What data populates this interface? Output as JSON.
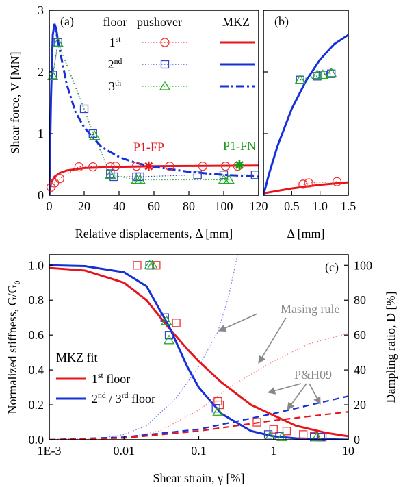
{
  "chart_data": [
    {
      "type": "line",
      "panel": "(a)",
      "y_label": "Shear force, V [MN]",
      "x_label": "Relative displacements, Δ [mm]",
      "xlim": [
        0,
        120
      ],
      "xticks": [
        0,
        20,
        40,
        60,
        80,
        100,
        120
      ],
      "ylim": [
        0,
        3
      ],
      "yticks": [
        0,
        1,
        2,
        3
      ],
      "legend_headers": [
        "floor",
        "pushover",
        "MKZ"
      ],
      "series": [
        {
          "name": [
            {
              "text": "1"
            },
            {
              "sup": "st"
            }
          ],
          "color": "#ee3333",
          "marker": "circle",
          "dash": "dotted",
          "x": [
            1,
            3,
            6,
            17,
            25,
            35,
            38,
            50,
            69,
            88,
            101,
            108
          ],
          "values": [
            0.13,
            0.2,
            0.27,
            0.46,
            0.46,
            0.46,
            0.47,
            0.47,
            0.47,
            0.47,
            0.47,
            0.47
          ]
        },
        {
          "name": [
            {
              "text": "2"
            },
            {
              "sup": "nd"
            }
          ],
          "color": "#3344cc",
          "marker": "square",
          "dash": "dotted",
          "x": [
            2,
            5,
            20,
            25,
            35,
            37,
            50,
            52,
            85,
            100,
            118
          ],
          "values": [
            1.95,
            2.48,
            1.4,
            1.0,
            0.35,
            0.3,
            0.3,
            0.3,
            0.33,
            0.33,
            0.33
          ]
        },
        {
          "name": [
            {
              "text": "3"
            },
            {
              "sup": "th"
            }
          ],
          "color": "#22aa22",
          "marker": "triangle",
          "dash": "dotted",
          "x": [
            2,
            5,
            26,
            35,
            50,
            52,
            100,
            103
          ],
          "values": [
            1.93,
            2.47,
            0.96,
            0.33,
            0.25,
            0.25,
            0.25,
            0.25
          ]
        },
        {
          "color": "#e8141b",
          "dash": "solid",
          "x": [
            0,
            1,
            3,
            6,
            10,
            20,
            40,
            60,
            90,
            120
          ],
          "values": [
            0,
            0.2,
            0.3,
            0.36,
            0.4,
            0.44,
            0.46,
            0.47,
            0.475,
            0.48
          ]
        },
        {
          "color": "#1530d8",
          "dash": "solid",
          "x": [
            0,
            1,
            2,
            3,
            4,
            5
          ],
          "values": [
            0,
            1.6,
            2.6,
            2.78,
            2.7,
            2.5
          ]
        },
        {
          "color": "#1530d8",
          "dash": "dashdot",
          "x": [
            3,
            5,
            10,
            15,
            20,
            30,
            40,
            50,
            60,
            80,
            100,
            120
          ],
          "values": [
            2.78,
            2.5,
            1.8,
            1.35,
            1.1,
            0.78,
            0.62,
            0.52,
            0.46,
            0.38,
            0.33,
            0.3
          ]
        }
      ],
      "points": [
        {
          "label": "P1-FP",
          "x": 57,
          "y": 0.47,
          "color": "#e8141b"
        },
        {
          "label": "P1-FN",
          "x": 109,
          "y": 0.49,
          "color": "#1a9a1a"
        }
      ]
    },
    {
      "type": "line",
      "panel": "(b)",
      "x_label": "Δ [mm]",
      "xlim": [
        0,
        1.5
      ],
      "xticks": [
        0.5,
        {
          "value": 1,
          "label": "1.0"
        },
        1.5
      ],
      "ylim": [
        0,
        3
      ],
      "yticks": [
        0,
        1,
        2,
        3
      ],
      "show_ytick_labels": false,
      "series": [
        {
          "color": "#ee3333",
          "marker": "circle",
          "dash": "dotted",
          "x": [
            0.7,
            0.8,
            1.3
          ],
          "values": [
            0.18,
            0.2,
            0.22
          ]
        },
        {
          "color": "#3344cc",
          "marker": "square",
          "dash": "dotted",
          "x": [
            0.65,
            0.95,
            1.05,
            1.2
          ],
          "values": [
            1.87,
            1.93,
            1.95,
            1.97
          ]
        },
        {
          "color": "#22aa22",
          "marker": "triangle",
          "dash": "dotted",
          "x": [
            0.65,
            0.95,
            1.05,
            1.2
          ],
          "values": [
            1.87,
            1.95,
            1.95,
            1.98
          ]
        },
        {
          "color": "#e8141b",
          "dash": "solid",
          "x": [
            0,
            0.25,
            0.5,
            0.75,
            1,
            1.25,
            1.5
          ],
          "values": [
            0.03,
            0.07,
            0.11,
            0.14,
            0.17,
            0.19,
            0.21
          ]
        },
        {
          "color": "#1530d8",
          "dash": "solid",
          "x": [
            0,
            0.1,
            0.25,
            0.5,
            0.75,
            1,
            1.25,
            1.5
          ],
          "values": [
            0,
            0.35,
            0.8,
            1.4,
            1.85,
            2.2,
            2.45,
            2.6
          ]
        }
      ]
    },
    {
      "type": "line",
      "panel": "(c)",
      "xscale": "log",
      "y_label": [
        {
          "text": "Normalized stiffness, G/G"
        },
        {
          "sub": "0"
        }
      ],
      "y2_label": "Dampling ratio, D [%]",
      "x_label": "Shear strain, γ [%]",
      "xlim": [
        0.001,
        10
      ],
      "xticks": [
        {
          "value": 0.001,
          "label": "1E-3"
        },
        0.01,
        0.1,
        1,
        10
      ],
      "ylim": [
        0,
        1.06
      ],
      "yticks": [
        {
          "value": 0,
          "label": "0.0"
        },
        0.2,
        0.4,
        0.6,
        0.8,
        {
          "value": 1,
          "label": "1.0"
        }
      ],
      "y2lim": [
        0,
        106
      ],
      "y2ticks": [
        0,
        20,
        40,
        60,
        80,
        100
      ],
      "legend_title": "MKZ fit",
      "series": [
        {
          "name": [
            {
              "text": "1"
            },
            {
              "sup": "st"
            },
            {
              "text": " floor"
            }
          ],
          "color": "#e8141b",
          "dash": "solid",
          "x": [
            0.001,
            0.003,
            0.01,
            0.02,
            0.04,
            0.07,
            0.1,
            0.2,
            0.5,
            1,
            2,
            5,
            10
          ],
          "values": [
            0.985,
            0.97,
            0.9,
            0.8,
            0.64,
            0.52,
            0.45,
            0.33,
            0.2,
            0.14,
            0.08,
            0.04,
            0.02
          ]
        },
        {
          "name": [
            {
              "text": "2"
            },
            {
              "sup": "nd"
            },
            {
              "text": " / 3"
            },
            {
              "sup": "rd"
            },
            {
              "text": " floor"
            }
          ],
          "color": "#1530d8",
          "dash": "solid",
          "x": [
            0.001,
            0.003,
            0.01,
            0.02,
            0.04,
            0.07,
            0.1,
            0.2,
            0.5,
            1,
            2,
            10
          ],
          "values": [
            1.0,
            0.995,
            0.96,
            0.88,
            0.65,
            0.42,
            0.3,
            0.15,
            0.05,
            0.02,
            0.008,
            0
          ]
        },
        {
          "color": "#ee3333",
          "marker": "square",
          "x": [
            0.015,
            0.027,
            0.035,
            0.05,
            0.18,
            0.19,
            0.6,
            1.0,
            1.5,
            2.5,
            3.5,
            4.5
          ],
          "values": [
            1.0,
            1.0,
            0.7,
            0.67,
            0.22,
            0.2,
            0.1,
            0.06,
            0.05,
            0.03,
            0.02,
            0.015
          ]
        },
        {
          "color": "#3344cc",
          "marker": "square",
          "x": [
            0.022,
            0.035,
            0.04,
            0.17,
            0.85,
            1.2,
            3.5,
            4.3
          ],
          "values": [
            1.0,
            0.7,
            0.6,
            0.18,
            0.03,
            0.02,
            0.015,
            0.015
          ]
        },
        {
          "color": "#22aa22",
          "marker": "triangle",
          "x": [
            0.022,
            0.024,
            0.037,
            0.04,
            0.18,
            0.9,
            1.3,
            3.8
          ],
          "values": [
            1.0,
            1.0,
            0.68,
            0.57,
            0.16,
            0.02,
            0.015,
            0.015
          ]
        },
        {
          "color": "#ff7777",
          "dash": "dotted",
          "axis": "y2",
          "x": [
            0.001,
            0.01,
            0.03,
            0.1,
            0.3,
            1,
            3,
            10
          ],
          "values": [
            0,
            1,
            5,
            17,
            32,
            45,
            55,
            61
          ]
        },
        {
          "color": "#7777ee",
          "dash": "dotted",
          "axis": "y2",
          "x": [
            0.001,
            0.005,
            0.01,
            0.02,
            0.05,
            0.1,
            0.18,
            0.25,
            0.33
          ],
          "values": [
            0.2,
            1,
            3,
            8,
            24,
            42,
            62,
            82,
            106
          ]
        },
        {
          "color": "#1530d8",
          "dash": "dashed",
          "axis": "y2",
          "x": [
            0.001,
            0.01,
            0.1,
            1,
            10
          ],
          "values": [
            0,
            1.5,
            6,
            15,
            25
          ]
        },
        {
          "color": "#e8141b",
          "dash": "dashed",
          "axis": "y2",
          "x": [
            0.001,
            0.01,
            0.1,
            1,
            10
          ],
          "values": [
            0,
            1,
            5,
            11,
            16
          ]
        }
      ],
      "annotations": [
        "Masing rule",
        "P&H09"
      ]
    }
  ]
}
